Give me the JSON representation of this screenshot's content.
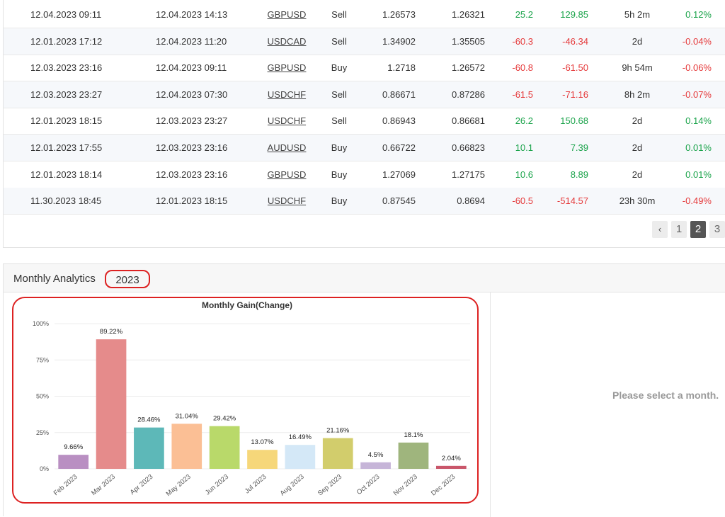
{
  "trades": [
    {
      "open": "12.04.2023 09:11",
      "close": "12.04.2023 14:13",
      "symbol": "GBPUSD",
      "action": "Sell",
      "open_price": "1.26573",
      "close_price": "1.26321",
      "pips": "25.2",
      "profit": "129.85",
      "duration": "5h 2m",
      "gain": "0.12%",
      "positive": true
    },
    {
      "open": "12.01.2023 17:12",
      "close": "12.04.2023 11:20",
      "symbol": "USDCAD",
      "action": "Sell",
      "open_price": "1.34902",
      "close_price": "1.35505",
      "pips": "-60.3",
      "profit": "-46.34",
      "duration": "2d",
      "gain": "-0.04%",
      "positive": false
    },
    {
      "open": "12.03.2023 23:16",
      "close": "12.04.2023 09:11",
      "symbol": "GBPUSD",
      "action": "Buy",
      "open_price": "1.2718",
      "close_price": "1.26572",
      "pips": "-60.8",
      "profit": "-61.50",
      "duration": "9h 54m",
      "gain": "-0.06%",
      "positive": false
    },
    {
      "open": "12.03.2023 23:27",
      "close": "12.04.2023 07:30",
      "symbol": "USDCHF",
      "action": "Sell",
      "open_price": "0.86671",
      "close_price": "0.87286",
      "pips": "-61.5",
      "profit": "-71.16",
      "duration": "8h 2m",
      "gain": "-0.07%",
      "positive": false
    },
    {
      "open": "12.01.2023 18:15",
      "close": "12.03.2023 23:27",
      "symbol": "USDCHF",
      "action": "Sell",
      "open_price": "0.86943",
      "close_price": "0.86681",
      "pips": "26.2",
      "profit": "150.68",
      "duration": "2d",
      "gain": "0.14%",
      "positive": true
    },
    {
      "open": "12.01.2023 17:55",
      "close": "12.03.2023 23:16",
      "symbol": "AUDUSD",
      "action": "Buy",
      "open_price": "0.66722",
      "close_price": "0.66823",
      "pips": "10.1",
      "profit": "7.39",
      "duration": "2d",
      "gain": "0.01%",
      "positive": true
    },
    {
      "open": "12.01.2023 18:14",
      "close": "12.03.2023 23:16",
      "symbol": "GBPUSD",
      "action": "Buy",
      "open_price": "1.27069",
      "close_price": "1.27175",
      "pips": "10.6",
      "profit": "8.89",
      "duration": "2d",
      "gain": "0.01%",
      "positive": true
    },
    {
      "open": "11.30.2023 18:45",
      "close": "12.01.2023 18:15",
      "symbol": "USDCHF",
      "action": "Buy",
      "open_price": "0.87545",
      "close_price": "0.8694",
      "pips": "-60.5",
      "profit": "-514.57",
      "duration": "23h 30m",
      "gain": "-0.49%",
      "positive": false
    }
  ],
  "pagination": {
    "prev_icon": "‹",
    "pages": [
      "1",
      "2",
      "3"
    ],
    "current": "2"
  },
  "analytics": {
    "title": "Monthly Analytics",
    "year": "2023",
    "empty_message": "Please select a month."
  },
  "colors": {
    "positive": "#1aa34a",
    "negative": "#e5393a",
    "highlight": "#dd2222"
  },
  "chart_data": {
    "type": "bar",
    "title": "Monthly Gain(Change)",
    "categories": [
      "Feb 2023",
      "Mar 2023",
      "Apr 2023",
      "May 2023",
      "Jun 2023",
      "Jul 2023",
      "Aug 2023",
      "Sep 2023",
      "Oct 2023",
      "Nov 2023",
      "Dec 2023"
    ],
    "values": [
      9.66,
      89.22,
      28.46,
      31.04,
      29.42,
      13.07,
      16.49,
      21.16,
      4.5,
      18.1,
      2.04
    ],
    "value_labels": [
      "9.66%",
      "89.22%",
      "28.46%",
      "31.04%",
      "29.42%",
      "13.07%",
      "16.49%",
      "21.16%",
      "4.5%",
      "18.1%",
      "2.04%"
    ],
    "colors": [
      "#b98fc2",
      "#e58b8b",
      "#5db8b8",
      "#fbbf95",
      "#b9d96a",
      "#f6d77a",
      "#d4e8f7",
      "#d2cd6c",
      "#c6b5d8",
      "#9fb57d",
      "#c9566a"
    ],
    "y_ticks": [
      "0%",
      "25%",
      "50%",
      "75%",
      "100%"
    ],
    "ylim": [
      0,
      100
    ],
    "grid": true
  }
}
